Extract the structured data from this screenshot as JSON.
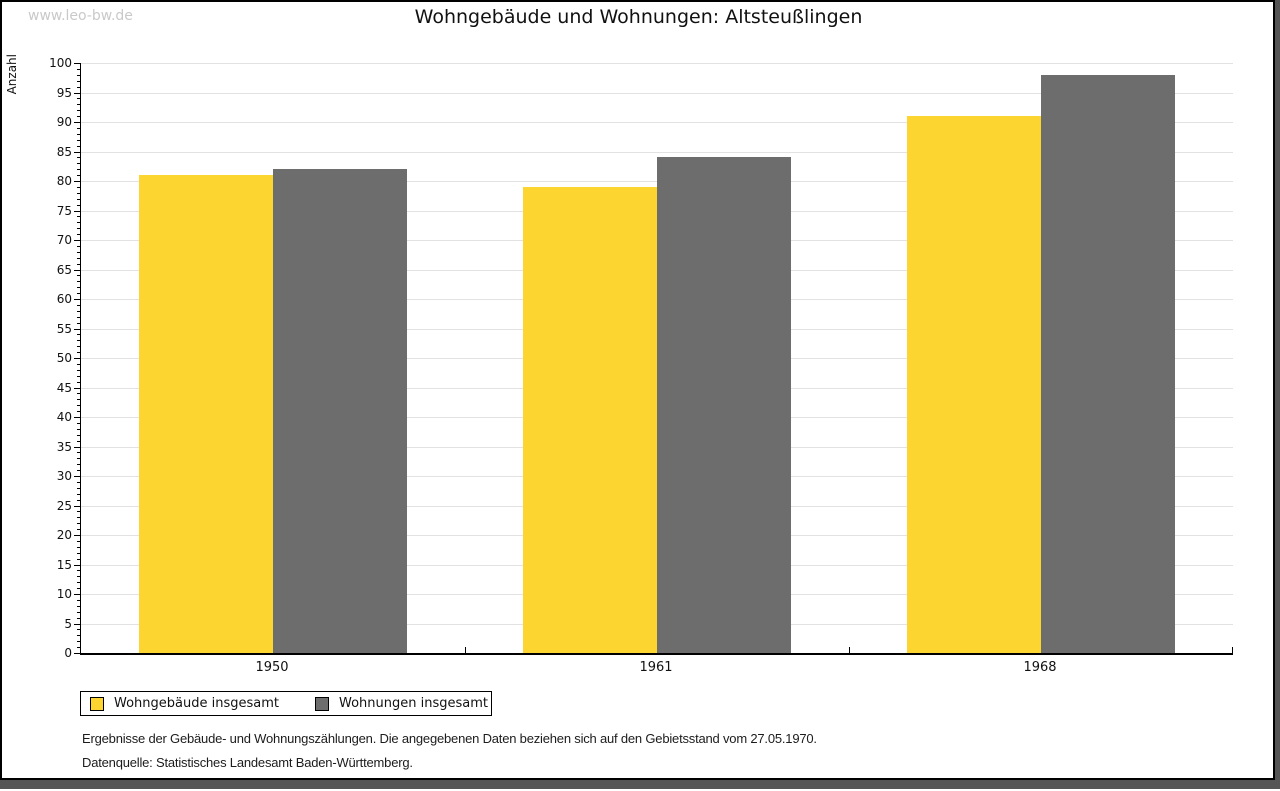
{
  "watermark": "www.leo-bw.de",
  "title": "Wohngebäude und Wohnungen: Altsteußlingen",
  "chart_data": {
    "type": "bar",
    "title": "Wohngebäude und Wohnungen: Altsteußlingen",
    "categories": [
      "1950",
      "1961",
      "1968"
    ],
    "series": [
      {
        "name": "Wohngebäude insgesamt",
        "color": "#FDD530",
        "values": [
          81,
          79,
          91
        ]
      },
      {
        "name": "Wohnungen insgesamt",
        "color": "#6D6D6D",
        "values": [
          82,
          84,
          98
        ]
      }
    ],
    "xlabel": "",
    "ylabel": "Anzahl",
    "ylim": [
      0,
      100
    ],
    "yticks": [
      0,
      5,
      10,
      15,
      20,
      25,
      30,
      35,
      40,
      45,
      50,
      55,
      60,
      65,
      70,
      75,
      80,
      85,
      90,
      95,
      100
    ],
    "minor_tick_step": 1,
    "grid": true,
    "gridline_color": "#e2e2e2",
    "legend_position": "bottom-left"
  },
  "footnotes": [
    "Ergebnisse der Gebäude- und Wohnungszählungen. Die angegebenen Daten beziehen sich auf den Gebietsstand vom 27.05.1970.",
    "Datenquelle: Statistisches Landesamt Baden-Württemberg."
  ]
}
